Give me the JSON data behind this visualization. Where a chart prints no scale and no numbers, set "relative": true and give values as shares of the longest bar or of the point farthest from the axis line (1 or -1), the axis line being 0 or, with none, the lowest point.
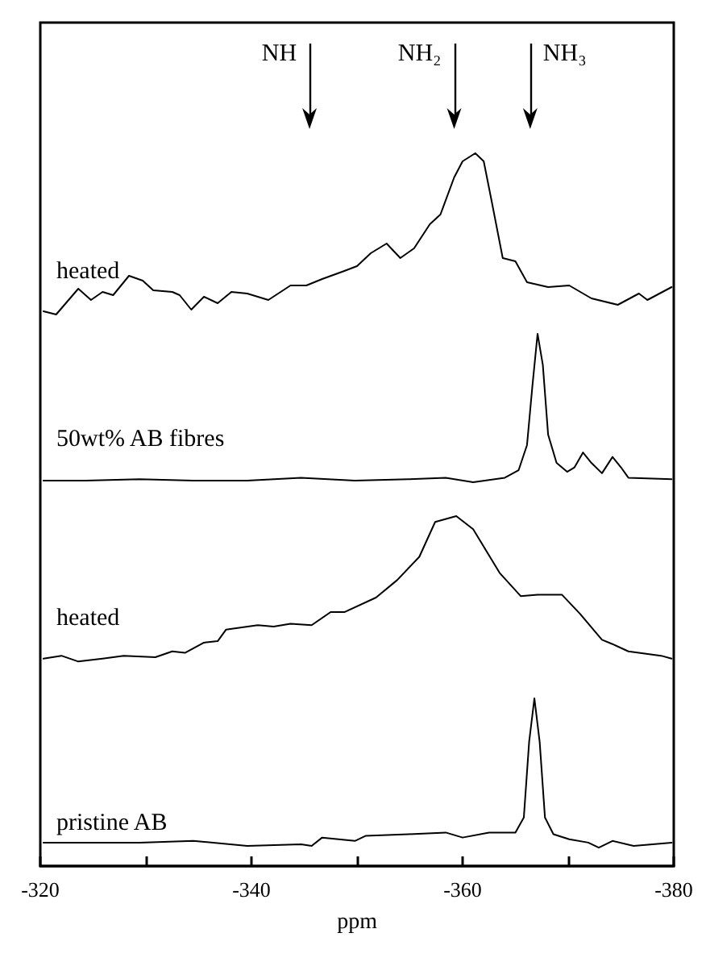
{
  "chart_data": [
    {
      "type": "line",
      "relative": true,
      "xlim": [
        -320,
        -380
      ],
      "line_style": "solid",
      "ref_lines": [
        {
          "axis": "x",
          "value": -345.5,
          "label": "NH"
        },
        {
          "axis": "x",
          "value": -359.2,
          "label": "NH₂"
        },
        {
          "axis": "x",
          "value": -366.4,
          "label": "NH₃"
        }
      ],
      "series": [
        {
          "name": "heated",
          "color": "#000000",
          "x": [
            -320.3,
            -321.5,
            -323.6,
            -324.8,
            -325.9,
            -326.9,
            -328.4,
            -329.7,
            -330.7,
            -332.5,
            -333.2,
            -334.3,
            -335.5,
            -336.8,
            -338.1,
            -339.6,
            -341.6,
            -343.7,
            -345.2,
            -346.7,
            -348.8,
            -350.0,
            -351.3,
            -352.8,
            -354.1,
            -355.4,
            -356.9,
            -357.9,
            -359.2,
            -360.0,
            -361.2,
            -362.0,
            -362.7,
            -363.8,
            -365.0,
            -366.1,
            -368.1,
            -370.1,
            -372.2,
            -374.7,
            -376.7,
            -377.5,
            -379.8
          ],
          "values": [
            0.02,
            0,
            0.16,
            0.09,
            0.14,
            0.12,
            0.24,
            0.21,
            0.15,
            0.14,
            0.12,
            0.03,
            0.11,
            0.07,
            0.14,
            0.13,
            0.09,
            0.18,
            0.18,
            0.22,
            0.27,
            0.3,
            0.38,
            0.44,
            0.35,
            0.41,
            0.56,
            0.62,
            0.85,
            0.95,
            1,
            0.95,
            0.72,
            0.35,
            0.33,
            0.2,
            0.17,
            0.18,
            0.1,
            0.06,
            0.13,
            0.09,
            0.17
          ]
        }
      ]
    },
    {
      "type": "line",
      "relative": true,
      "xlim": [
        -320,
        -380
      ],
      "line_style": "solid",
      "series": [
        {
          "name": "50wt% AB fibres",
          "color": "#000000",
          "x": [
            -320.3,
            -324.3,
            -329.4,
            -334.5,
            -339.6,
            -344.7,
            -349.8,
            -354.9,
            -358.4,
            -361.0,
            -364.0,
            -365.3,
            -366.1,
            -366.6,
            -367.1,
            -367.6,
            -368.1,
            -368.9,
            -369.9,
            -370.6,
            -371.4,
            -372.2,
            -373.2,
            -374.2,
            -375.0,
            -375.7,
            -379.8
          ],
          "values": [
            0.01,
            0.01,
            0.02,
            0.01,
            0.01,
            0.03,
            0.01,
            0.02,
            0.03,
            0,
            0.03,
            0.08,
            0.25,
            0.64,
            1,
            0.79,
            0.32,
            0.13,
            0.07,
            0.1,
            0.2,
            0.13,
            0.06,
            0.17,
            0.1,
            0.03,
            0.02
          ]
        }
      ]
    },
    {
      "type": "line",
      "relative": true,
      "xlim": [
        -320,
        -380
      ],
      "line_style": "solid",
      "series": [
        {
          "name": "heated",
          "color": "#000000",
          "x": [
            -320.3,
            -322.0,
            -323.6,
            -325.9,
            -327.9,
            -330.9,
            -332.5,
            -333.7,
            -335.5,
            -336.8,
            -337.6,
            -340.6,
            -342.1,
            -343.7,
            -345.7,
            -347.5,
            -348.8,
            -351.8,
            -353.8,
            -355.9,
            -357.4,
            -359.4,
            -361.0,
            -363.5,
            -365.5,
            -367.1,
            -369.4,
            -371.1,
            -373.2,
            -374.2,
            -375.7,
            -378.8,
            -379.8
          ],
          "values": [
            0.02,
            0.04,
            0,
            0.02,
            0.04,
            0.03,
            0.07,
            0.06,
            0.13,
            0.14,
            0.22,
            0.25,
            0.24,
            0.26,
            0.25,
            0.34,
            0.34,
            0.44,
            0.56,
            0.72,
            0.96,
            1,
            0.91,
            0.61,
            0.45,
            0.46,
            0.46,
            0.33,
            0.15,
            0.12,
            0.07,
            0.04,
            0.02
          ]
        }
      ]
    },
    {
      "type": "line",
      "relative": true,
      "xlim": [
        -320,
        -380
      ],
      "xlabel": "ppm",
      "line_style": "solid",
      "xticks": [
        -320,
        {
          "value": -330,
          "label": null
        },
        -340,
        {
          "value": -350,
          "label": null
        },
        -360,
        {
          "value": -370,
          "label": null
        },
        -380
      ],
      "series": [
        {
          "name": "pristine AB",
          "color": "#000000",
          "x": [
            -320.3,
            -324.3,
            -329.4,
            -334.5,
            -339.6,
            -344.7,
            -345.7,
            -346.7,
            -349.8,
            -350.8,
            -354.9,
            -358.4,
            -360.0,
            -362.5,
            -365.0,
            -365.8,
            -366.3,
            -366.8,
            -367.3,
            -367.8,
            -368.6,
            -370.1,
            -371.9,
            -372.9,
            -374.2,
            -376.2,
            -379.8
          ],
          "values": [
            0.14,
            0.14,
            0.14,
            0.15,
            0.12,
            0.13,
            0.12,
            0.17,
            0.15,
            0.18,
            0.19,
            0.2,
            0.17,
            0.2,
            0.2,
            0.29,
            0.74,
            1,
            0.74,
            0.29,
            0.19,
            0.16,
            0.14,
            0.11,
            0.15,
            0.12,
            0.14
          ]
        }
      ]
    }
  ]
}
